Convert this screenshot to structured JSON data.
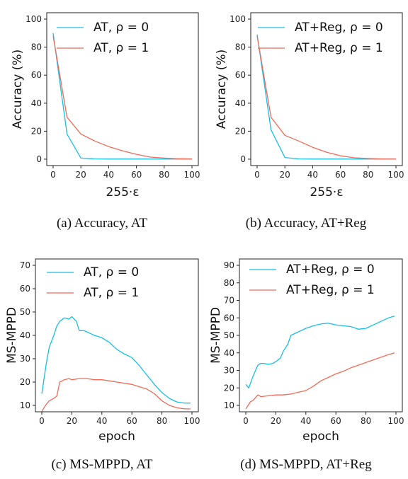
{
  "colors": {
    "cyan": "#17bfe6",
    "red": "#ef6b57",
    "axis": "#222222"
  },
  "captions": [
    "(a)  Accuracy, AT",
    "(b)  Accuracy, AT+Reg",
    "(c)  MS-MPPD, AT",
    "(d)  MS-MPPD, AT+Reg"
  ],
  "chart_data": [
    {
      "type": "line",
      "xlabel": "255·ε",
      "ylabel": "Accuracy (%)",
      "xlim": [
        0,
        100
      ],
      "ylim": [
        0,
        100
      ],
      "xticks": [
        0,
        20,
        40,
        60,
        80,
        100
      ],
      "yticks": [
        0,
        20,
        40,
        60,
        80,
        100
      ],
      "legend_position": "top-right",
      "series": [
        {
          "name": "AT, ρ = 0",
          "color": "cyan",
          "x": [
            0,
            10,
            20,
            30,
            40,
            50,
            60,
            70,
            80,
            90,
            100
          ],
          "y": [
            90,
            18,
            0.8,
            0.2,
            0.1,
            0.1,
            0.1,
            0.1,
            0.1,
            0.1,
            0.1
          ]
        },
        {
          "name": "AT, ρ = 1",
          "color": "red",
          "x": [
            0,
            10,
            20,
            30,
            40,
            50,
            60,
            70,
            80,
            90,
            100
          ],
          "y": [
            88,
            30,
            18,
            13,
            9,
            6,
            3.5,
            1.5,
            0.8,
            0.3,
            0.2
          ]
        }
      ]
    },
    {
      "type": "line",
      "xlabel": "255·ε",
      "ylabel": "Accuracy (%)",
      "xlim": [
        0,
        100
      ],
      "ylim": [
        0,
        100
      ],
      "xticks": [
        0,
        20,
        40,
        60,
        80,
        100
      ],
      "yticks": [
        0,
        20,
        40,
        60,
        80,
        100
      ],
      "legend_position": "top-right",
      "series": [
        {
          "name": "AT+Reg, ρ = 0",
          "color": "cyan",
          "x": [
            0,
            10,
            20,
            30,
            40,
            50,
            60,
            70,
            80,
            90,
            100
          ],
          "y": [
            89,
            21,
            1.2,
            0.2,
            0.1,
            0.1,
            0.1,
            0.1,
            0.1,
            0.1,
            0.1
          ]
        },
        {
          "name": "AT+Reg, ρ = 1",
          "color": "red",
          "x": [
            0,
            10,
            20,
            30,
            40,
            50,
            60,
            70,
            80,
            90,
            100
          ],
          "y": [
            88,
            30,
            17,
            13,
            8.5,
            5,
            2.5,
            1,
            0.5,
            0.2,
            0.1
          ]
        }
      ]
    },
    {
      "type": "line",
      "xlabel": "epoch",
      "ylabel": "MS-MPPD",
      "xlim": [
        0,
        100
      ],
      "ylim": [
        10,
        70
      ],
      "xticks": [
        0,
        20,
        40,
        60,
        80,
        100
      ],
      "yticks": [
        10,
        20,
        30,
        40,
        50,
        60,
        70
      ],
      "legend_position": "top-center",
      "series": [
        {
          "name": "AT, ρ = 0",
          "color": "cyan",
          "x": [
            0,
            3,
            5,
            8,
            10,
            12,
            15,
            18,
            20,
            23,
            25,
            28,
            30,
            35,
            40,
            45,
            50,
            55,
            60,
            65,
            70,
            75,
            80,
            85,
            90,
            95,
            99
          ],
          "y": [
            15,
            28,
            35,
            40,
            44,
            46,
            47.5,
            47,
            48,
            46,
            42,
            42,
            41.5,
            40,
            39,
            37,
            34,
            32,
            30.5,
            27,
            23,
            19,
            15.5,
            13,
            11.5,
            11,
            11
          ]
        },
        {
          "name": "AT, ρ = 1",
          "color": "red",
          "x": [
            0,
            3,
            5,
            8,
            10,
            12,
            15,
            18,
            20,
            25,
            30,
            35,
            40,
            45,
            50,
            55,
            60,
            65,
            70,
            75,
            80,
            85,
            90,
            95,
            99
          ],
          "y": [
            7.5,
            10.5,
            12,
            13,
            14,
            20,
            21,
            21.5,
            21,
            21.5,
            21.5,
            21,
            21,
            20.5,
            20,
            19.5,
            19,
            18,
            17,
            15,
            12,
            10,
            9,
            8.5,
            8.5
          ]
        }
      ]
    },
    {
      "type": "line",
      "xlabel": "epoch",
      "ylabel": "MS-MPPD",
      "xlim": [
        0,
        100
      ],
      "ylim": [
        10,
        90
      ],
      "xticks": [
        0,
        20,
        40,
        60,
        80,
        100
      ],
      "yticks": [
        10,
        20,
        30,
        40,
        50,
        60,
        70,
        80,
        90
      ],
      "legend_position": "top-right",
      "series": [
        {
          "name": "AT+Reg, ρ = 0",
          "color": "cyan",
          "x": [
            0,
            2,
            5,
            8,
            10,
            12,
            15,
            18,
            20,
            23,
            25,
            28,
            30,
            35,
            40,
            45,
            50,
            55,
            60,
            65,
            70,
            75,
            80,
            85,
            90,
            95,
            99
          ],
          "y": [
            22,
            20,
            27,
            33,
            34,
            34,
            33.5,
            34,
            35,
            37,
            41,
            45,
            50,
            52,
            54,
            55.5,
            56.5,
            57,
            56,
            55.5,
            55,
            53.5,
            54,
            56,
            58,
            60,
            61
          ]
        },
        {
          "name": "AT+Reg, ρ = 1",
          "color": "red",
          "x": [
            0,
            3,
            5,
            8,
            10,
            15,
            20,
            25,
            30,
            35,
            40,
            45,
            50,
            55,
            60,
            65,
            70,
            75,
            80,
            85,
            90,
            95,
            99
          ],
          "y": [
            8,
            12,
            13,
            16,
            15,
            15.5,
            16,
            16,
            16.5,
            17.5,
            18.5,
            21,
            24,
            26,
            28,
            29.5,
            31.5,
            33,
            34.5,
            36,
            37.5,
            39,
            40
          ]
        }
      ]
    }
  ]
}
